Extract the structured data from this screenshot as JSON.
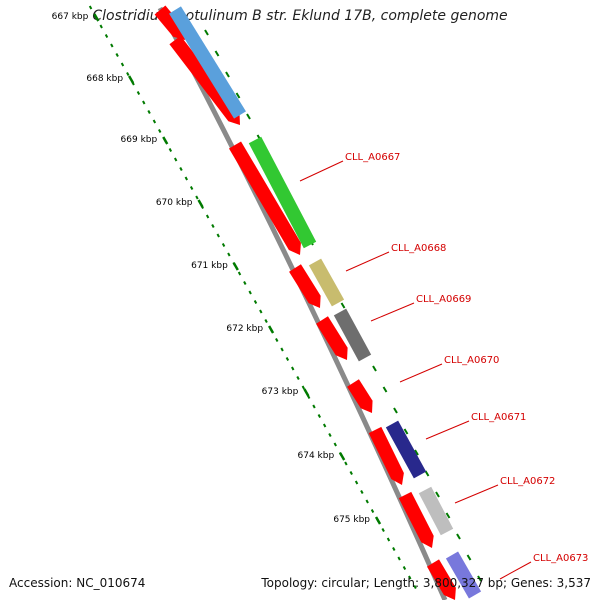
{
  "title": "Clostridium botulinum B str. Eklund 17B, complete genome",
  "footer": {
    "accession": "Accession: NC_010674",
    "topology": "Topology: circular; Length: 3,800,327 bp; Genes: 3,537"
  },
  "ticks": [
    "667 kbp",
    "668 kbp",
    "669 kbp",
    "670 kbp",
    "671 kbp",
    "672 kbp",
    "673 kbp",
    "674 kbp",
    "675 kbp"
  ],
  "genes": [
    "CLL_A0667",
    "CLL_A0668",
    "CLL_A0669",
    "CLL_A0670",
    "CLL_A0671",
    "CLL_A0672",
    "CLL_A0673"
  ],
  "colors": {
    "cds": "#ff0000",
    "backbone": "#808080",
    "tick": "#007a00",
    "label": "#d40000",
    "features": [
      "#5aa0dc",
      "#32c832",
      "#c8bc6e",
      "#6e6e6e",
      "#28288c",
      "#bebebe",
      "#7878dc"
    ]
  }
}
